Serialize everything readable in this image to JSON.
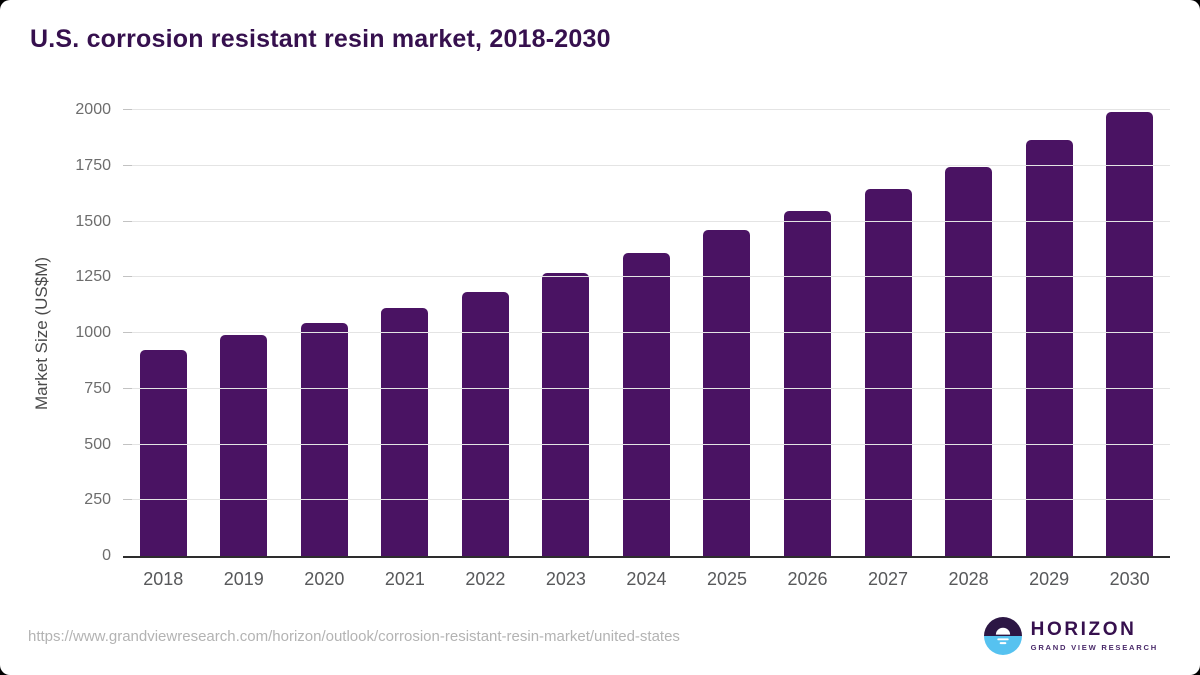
{
  "page": {
    "title": "U.S. corrosion resistant resin market, 2018-2030",
    "source_url": "https://www.grandviewresearch.com/horizon/outlook/corrosion-resistant-resin-market/united-states"
  },
  "brand": {
    "name": "HORIZON",
    "subtitle": "GRAND VIEW RESEARCH"
  },
  "chart_data": {
    "type": "bar",
    "title": "U.S. corrosion resistant resin market, 2018-2030",
    "categories": [
      "2018",
      "2019",
      "2020",
      "2021",
      "2022",
      "2023",
      "2024",
      "2025",
      "2026",
      "2027",
      "2028",
      "2029",
      "2030"
    ],
    "values": [
      925,
      990,
      1045,
      1110,
      1185,
      1268,
      1358,
      1462,
      1545,
      1645,
      1745,
      1865,
      1990
    ],
    "xlabel": "",
    "ylabel": "Market Size (US$M)",
    "ylim": [
      0,
      2000
    ],
    "ytick_step": 250,
    "yticks": [
      0,
      250,
      500,
      750,
      1000,
      1250,
      1500,
      1750,
      2000
    ],
    "grid": true,
    "legend": false,
    "bar_color": "#4a1363"
  },
  "colors": {
    "title": "#36104e",
    "bar": "#4a1363",
    "gridline": "#e4e4e4",
    "tick": "#c2c2c2",
    "baseline": "#2d2d2d",
    "y_tick_label": "#6d6d6d",
    "x_tick_label": "#57585a",
    "y_axis_title": "#4a4a4a",
    "url_text": "#b3b3b3",
    "logo_dark": "#2c1644",
    "logo_blue": "#56c2f0"
  }
}
